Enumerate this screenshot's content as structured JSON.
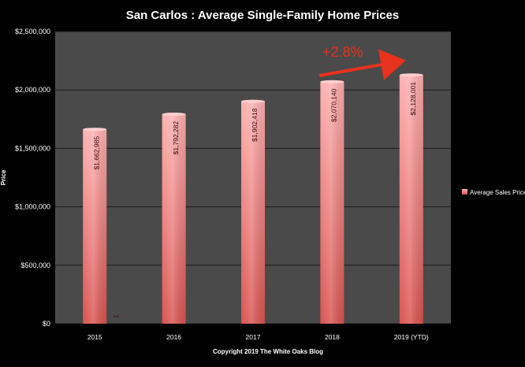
{
  "chart_data": {
    "type": "bar",
    "title": "San Carlos : Average Single-Family Home Prices",
    "ylabel": "Price",
    "footer": "Copyright 2019 The White  Oaks Blog",
    "categories": [
      "2015",
      "2016",
      "2017",
      "2018",
      "2019 (YTD)"
    ],
    "series": [
      {
        "name": "Average Sales Price",
        "values": [
          1662985,
          1792282,
          1902418,
          2070140,
          2128001
        ],
        "labels": [
          "$1,662,985",
          "$1,792,282",
          "$1,902,418",
          "$2,070,140",
          "$2,128,001"
        ]
      }
    ],
    "ylim": [
      0,
      2500000
    ],
    "yticks": [
      0,
      500000,
      1000000,
      1500000,
      2000000,
      2500000
    ],
    "ytick_labels": [
      "$0",
      "$500,000",
      "$1,000,000",
      "$1,500,000",
      "$2,000,000",
      "$2,500,000"
    ],
    "grid": true,
    "legend": "right",
    "annotation": {
      "text": "+2.8%",
      "color": "#e8321e"
    },
    "stray_label": "1",
    "colors": {
      "background": "#000000",
      "plot_area": "#4a4a4a",
      "bar_top": "#ffb0b0",
      "bar_bottom": "#d9534f",
      "grid": "#1a1a1a",
      "text": "#ffffff"
    }
  }
}
